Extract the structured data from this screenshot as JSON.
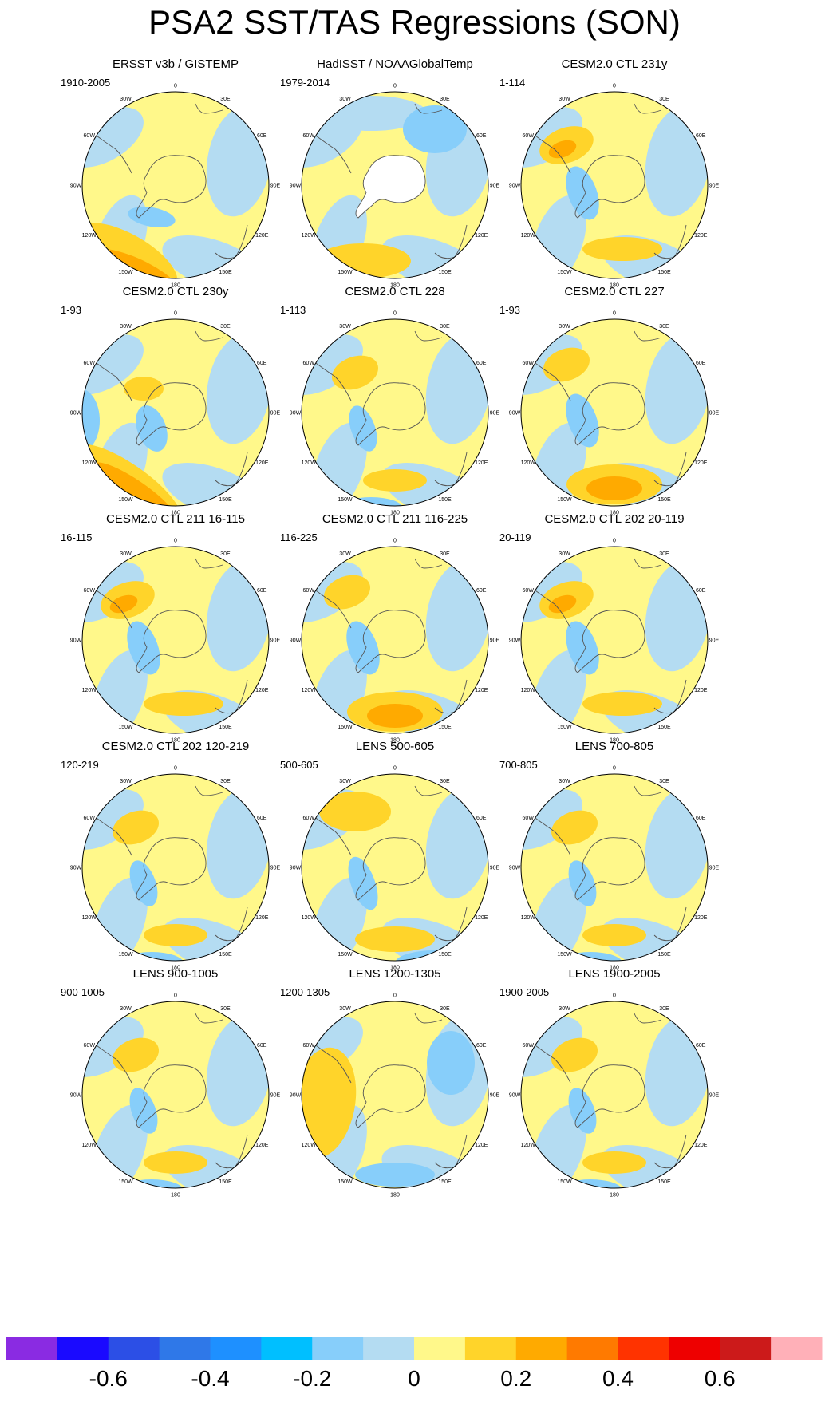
{
  "title": "PSA2 SST/TAS Regressions (SON)",
  "panels": [
    {
      "title": "ERSST v3b / GISTEMP",
      "years": "1910-2005",
      "land_mask": false
    },
    {
      "title": "HadISST / NOAAGlobalTemp",
      "years": "1979-2014",
      "land_mask": true
    },
    {
      "title": "CESM2.0 CTL 231y",
      "years": "1-114",
      "land_mask": false
    },
    {
      "title": "CESM2.0 CTL 230y",
      "years": "1-93",
      "land_mask": false
    },
    {
      "title": "CESM2.0 CTL 228",
      "years": "1-113",
      "land_mask": false
    },
    {
      "title": "CESM2.0 CTL 227",
      "years": "1-93",
      "land_mask": false
    },
    {
      "title": "CESM2.0 CTL 211 16-115",
      "years": "16-115",
      "land_mask": false
    },
    {
      "title": "CESM2.0 CTL 211 116-225",
      "years": "116-225",
      "land_mask": false
    },
    {
      "title": "CESM2.0 CTL 202 20-119",
      "years": "20-119",
      "land_mask": false
    },
    {
      "title": "CESM2.0 CTL 202 120-219",
      "years": "120-219",
      "land_mask": false
    },
    {
      "title": "LENS 500-605",
      "years": "500-605",
      "land_mask": false
    },
    {
      "title": "LENS 700-805",
      "years": "700-805",
      "land_mask": false
    },
    {
      "title": "LENS 900-1005",
      "years": "900-1005",
      "land_mask": false
    },
    {
      "title": "LENS 1200-1305",
      "years": "1200-1305",
      "land_mask": false
    },
    {
      "title": "LENS 1900-2005",
      "years": "1900-2005",
      "land_mask": false
    }
  ],
  "longitude_labels": [
    "0",
    "30E",
    "60E",
    "90E",
    "120E",
    "150E",
    "180",
    "150W",
    "120W",
    "90W",
    "60W",
    "30W"
  ],
  "colorbar": {
    "colors": [
      "#8a2be2",
      "#1a0aff",
      "#2c4fe6",
      "#2f78e8",
      "#1e90ff",
      "#00bfff",
      "#87cefa",
      "#b4dcf2",
      "#fff88a",
      "#ffd42a",
      "#ffaa00",
      "#ff7a00",
      "#ff3300",
      "#ee0000",
      "#cc1a1a",
      "#ffb0b8"
    ],
    "labels": [
      "-0.6",
      "-0.4",
      "-0.2",
      "0",
      "0.2",
      "0.4",
      "0.6"
    ]
  }
}
